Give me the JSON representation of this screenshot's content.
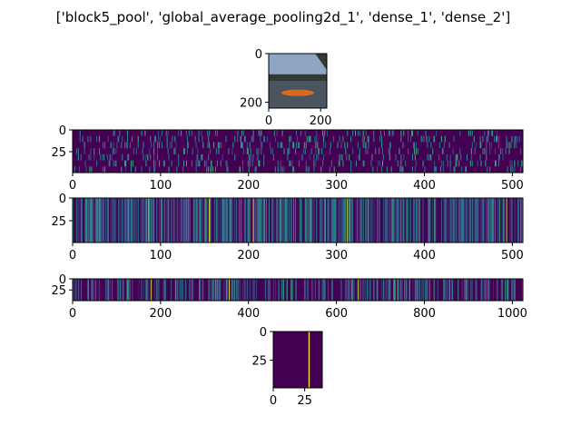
{
  "figure": {
    "title": "['block5_pool', 'global_average_pooling2d_1', 'dense_1', 'dense_2']"
  },
  "colors": {
    "viridis_low": "#440154",
    "viridis_mid": "#21918c",
    "viridis_high": "#fde725",
    "photo_sky": "#8ea6c4",
    "photo_water": "#4a5560",
    "photo_trees": "#2f3a34",
    "photo_canoe": "#d9691c"
  },
  "chart_data": [
    {
      "type": "image",
      "name": "input-image",
      "content_description": "photograph of an orange canoe on a lake with trees",
      "xticks": [
        "0",
        "200"
      ],
      "yticks": [
        "0",
        "200"
      ],
      "xlim": [
        0,
        224
      ],
      "ylim": [
        0,
        224
      ]
    },
    {
      "type": "heatmap",
      "name": "block5_pool",
      "xticks": [
        "0",
        "100",
        "200",
        "300",
        "400",
        "500"
      ],
      "yticks": [
        "0",
        "25"
      ],
      "xlim": [
        0,
        512
      ],
      "ylim": [
        0,
        49
      ],
      "colormap": "viridis",
      "values_pattern": "mostly low activations with sparse mid/high vertical streaks"
    },
    {
      "type": "heatmap",
      "name": "global_average_pooling2d_1",
      "xticks": [
        "0",
        "100",
        "200",
        "300",
        "400",
        "500"
      ],
      "yticks": [
        "0",
        "25"
      ],
      "xlim": [
        0,
        512
      ],
      "ylim": [
        0,
        49
      ],
      "colormap": "viridis",
      "bright_columns": [
        86,
        155,
        205,
        312,
        493
      ]
    },
    {
      "type": "heatmap",
      "name": "dense_1",
      "xticks": [
        "0",
        "200",
        "400",
        "600",
        "800",
        "1000"
      ],
      "yticks": [
        "0",
        "25"
      ],
      "xlim": [
        0,
        1024
      ],
      "ylim": [
        0,
        49
      ],
      "colormap": "viridis",
      "bright_columns": [
        178,
        350,
        355,
        648
      ]
    },
    {
      "type": "heatmap",
      "name": "dense_2",
      "xticks": [
        "0",
        "25"
      ],
      "yticks": [
        "0",
        "25"
      ],
      "xlim": [
        0,
        39
      ],
      "ylim": [
        0,
        49
      ],
      "colormap": "viridis",
      "bright_columns": [
        28
      ]
    }
  ]
}
